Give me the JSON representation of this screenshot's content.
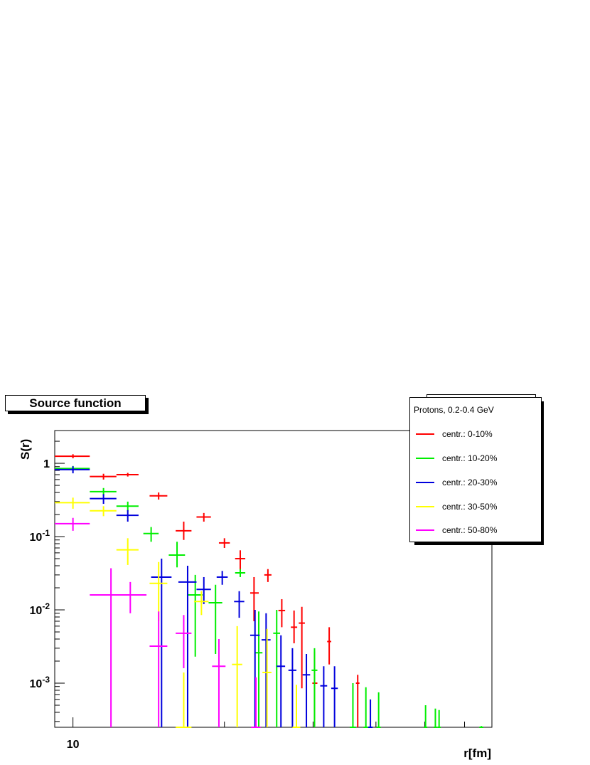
{
  "title": "Source function",
  "chart_data": {
    "type": "scatter",
    "style": "histogram-error-bars",
    "title": "Source function",
    "xlabel": "r[fm]",
    "ylabel": "S(r)",
    "xscale": "log",
    "yscale": "log",
    "xlim": [
      9.2,
      68
    ],
    "ylim": [
      0.00025,
      2.8
    ],
    "x_tick_labels": [
      {
        "value": 10,
        "text": "10"
      }
    ],
    "y_tick_labels": [
      {
        "value": 1,
        "text": "1",
        "mant": "1",
        "exp": ""
      },
      {
        "value": 0.1,
        "text": "10^-1",
        "mant": "10",
        "exp": "-1"
      },
      {
        "value": 0.01,
        "text": "10^-2",
        "mant": "10",
        "exp": "-2"
      },
      {
        "value": 0.001,
        "text": "10^-3",
        "mant": "10",
        "exp": "-3"
      }
    ],
    "legend": {
      "title": "Protons, 0.2-0.4 GeV",
      "position": "top-right",
      "entries": [
        {
          "label": "centr.: 0-10%",
          "color": "#ff0000"
        },
        {
          "label": "centr.: 10-20%",
          "color": "#00ee00"
        },
        {
          "label": "centr.: 20-30%",
          "color": "#0000dd"
        },
        {
          "label": "centr.: 30-50%",
          "color": "#ffff00"
        },
        {
          "label": "centr.: 50-80%",
          "color": "#ff00ff"
        }
      ]
    },
    "series": [
      {
        "name": "centr.: 0-10%",
        "color": "#ff0000",
        "points": [
          {
            "x": 10.0,
            "xlo": 9.2,
            "xhi": 10.8,
            "y": 1.25,
            "ylo": 1.17,
            "yhi": 1.33
          },
          {
            "x": 11.5,
            "xlo": 10.8,
            "xhi": 12.2,
            "y": 0.66,
            "ylo": 0.6,
            "yhi": 0.72
          },
          {
            "x": 12.85,
            "xlo": 12.2,
            "xhi": 13.5,
            "y": 0.7,
            "ylo": 0.66,
            "yhi": 0.74
          },
          {
            "x": 14.8,
            "xlo": 14.2,
            "xhi": 15.4,
            "y": 0.36,
            "ylo": 0.32,
            "yhi": 0.4
          },
          {
            "x": 16.6,
            "xlo": 16.0,
            "xhi": 17.2,
            "y": 0.12,
            "ylo": 0.09,
            "yhi": 0.16
          },
          {
            "x": 18.2,
            "xlo": 17.6,
            "xhi": 18.8,
            "y": 0.185,
            "ylo": 0.16,
            "yhi": 0.21
          },
          {
            "x": 20.0,
            "xlo": 19.5,
            "xhi": 20.5,
            "y": 0.082,
            "ylo": 0.07,
            "yhi": 0.095
          },
          {
            "x": 21.5,
            "xlo": 21.0,
            "xhi": 22.0,
            "y": 0.05,
            "ylo": 0.035,
            "yhi": 0.065
          },
          {
            "x": 22.9,
            "xlo": 22.5,
            "xhi": 23.4,
            "y": 0.017,
            "ylo": 0.007,
            "yhi": 0.028
          },
          {
            "x": 24.4,
            "xlo": 24.0,
            "xhi": 24.8,
            "y": 0.03,
            "ylo": 0.024,
            "yhi": 0.036
          },
          {
            "x": 26.0,
            "xlo": 25.6,
            "xhi": 26.4,
            "y": 0.0098,
            "ylo": 0.0058,
            "yhi": 0.014
          },
          {
            "x": 27.5,
            "xlo": 27.1,
            "xhi": 27.9,
            "y": 0.0058,
            "ylo": 0.0035,
            "yhi": 0.0098
          },
          {
            "x": 28.5,
            "xlo": 28.1,
            "xhi": 28.9,
            "y": 0.0066,
            "ylo": 0.00085,
            "yhi": 0.011
          },
          {
            "x": 30.2,
            "xlo": 29.9,
            "xhi": 30.6,
            "y": 0.001,
            "ylo": 0.00025,
            "yhi": 0.0027
          },
          {
            "x": 32.3,
            "xlo": 32.0,
            "xhi": 32.6,
            "y": 0.0037,
            "ylo": 0.0018,
            "yhi": 0.0058
          },
          {
            "x": 36.8,
            "xlo": 36.5,
            "xhi": 37.1,
            "y": 0.001,
            "ylo": 0.00025,
            "yhi": 0.0013
          }
        ]
      },
      {
        "name": "centr.: 10-20%",
        "color": "#00ee00",
        "points": [
          {
            "x": 10.0,
            "xlo": 9.2,
            "xhi": 10.8,
            "y": 0.85,
            "ylo": 0.78,
            "yhi": 0.92
          },
          {
            "x": 11.5,
            "xlo": 10.8,
            "xhi": 12.2,
            "y": 0.41,
            "ylo": 0.36,
            "yhi": 0.46
          },
          {
            "x": 12.85,
            "xlo": 12.2,
            "xhi": 13.5,
            "y": 0.26,
            "ylo": 0.22,
            "yhi": 0.3
          },
          {
            "x": 14.3,
            "xlo": 13.8,
            "xhi": 14.8,
            "y": 0.11,
            "ylo": 0.085,
            "yhi": 0.135
          },
          {
            "x": 16.1,
            "xlo": 15.5,
            "xhi": 16.7,
            "y": 0.056,
            "ylo": 0.038,
            "yhi": 0.085
          },
          {
            "x": 17.5,
            "xlo": 16.9,
            "xhi": 18.1,
            "y": 0.016,
            "ylo": 0.0023,
            "yhi": 0.03
          },
          {
            "x": 19.2,
            "xlo": 18.6,
            "xhi": 19.8,
            "y": 0.0125,
            "ylo": 0.0025,
            "yhi": 0.022
          },
          {
            "x": 21.5,
            "xlo": 21.0,
            "xhi": 22.0,
            "y": 0.032,
            "ylo": 0.028,
            "yhi": 0.036
          },
          {
            "x": 23.4,
            "xlo": 23.0,
            "xhi": 23.8,
            "y": 0.0026,
            "ylo": 0.00025,
            "yhi": 0.0095
          },
          {
            "x": 25.4,
            "xlo": 25.0,
            "xhi": 25.8,
            "y": 0.0048,
            "ylo": 0.00025,
            "yhi": 0.01
          },
          {
            "x": 30.2,
            "xlo": 29.8,
            "xhi": 30.6,
            "y": 0.0015,
            "ylo": 0.00025,
            "yhi": 0.003
          },
          {
            "x": 36.0,
            "xlo": 35.5,
            "xhi": 36.5,
            "y": 0.00025,
            "ylo": 0.00025,
            "yhi": 0.001
          },
          {
            "x": 38.2,
            "xlo": 37.8,
            "xhi": 38.6,
            "y": 0.00025,
            "ylo": 0.00025,
            "yhi": 0.00088
          },
          {
            "x": 40.5,
            "xlo": 40.1,
            "xhi": 40.9,
            "y": 0.00025,
            "ylo": 0.00025,
            "yhi": 0.00075
          },
          {
            "x": 50.2,
            "xlo": 49.8,
            "xhi": 50.6,
            "y": 0.00025,
            "ylo": 0.00025,
            "yhi": 0.0005
          },
          {
            "x": 52.5,
            "xlo": 52.1,
            "xhi": 52.9,
            "y": 0.00025,
            "ylo": 0.00025,
            "yhi": 0.00045
          },
          {
            "x": 53.4,
            "xlo": 53.0,
            "xhi": 53.8,
            "y": 0.00025,
            "ylo": 0.00025,
            "yhi": 0.00043
          },
          {
            "x": 64.8,
            "xlo": 64.2,
            "xhi": 65.4,
            "y": 0.00025,
            "ylo": 0.00025,
            "yhi": 0.00026
          }
        ]
      },
      {
        "name": "centr.: 20-30%",
        "color": "#0000dd",
        "points": [
          {
            "x": 10.0,
            "xlo": 9.2,
            "xhi": 10.8,
            "y": 0.82,
            "ylo": 0.73,
            "yhi": 0.91
          },
          {
            "x": 11.5,
            "xlo": 10.8,
            "xhi": 12.2,
            "y": 0.33,
            "ylo": 0.28,
            "yhi": 0.38
          },
          {
            "x": 12.85,
            "xlo": 12.2,
            "xhi": 13.5,
            "y": 0.195,
            "ylo": 0.16,
            "yhi": 0.23
          },
          {
            "x": 15.0,
            "xlo": 14.3,
            "xhi": 15.7,
            "y": 0.028,
            "ylo": 0.00025,
            "yhi": 0.05
          },
          {
            "x": 16.9,
            "xlo": 16.2,
            "xhi": 17.6,
            "y": 0.024,
            "ylo": 0.00025,
            "yhi": 0.04
          },
          {
            "x": 18.2,
            "xlo": 17.6,
            "xhi": 18.8,
            "y": 0.019,
            "ylo": 0.012,
            "yhi": 0.028
          },
          {
            "x": 19.8,
            "xlo": 19.3,
            "xhi": 20.3,
            "y": 0.028,
            "ylo": 0.022,
            "yhi": 0.034
          },
          {
            "x": 21.4,
            "xlo": 20.9,
            "xhi": 21.9,
            "y": 0.013,
            "ylo": 0.0078,
            "yhi": 0.018
          },
          {
            "x": 23.0,
            "xlo": 22.5,
            "xhi": 23.5,
            "y": 0.0045,
            "ylo": 0.00025,
            "yhi": 0.01
          },
          {
            "x": 24.2,
            "xlo": 23.7,
            "xhi": 24.7,
            "y": 0.0039,
            "ylo": 0.00025,
            "yhi": 0.009
          },
          {
            "x": 25.9,
            "xlo": 25.4,
            "xhi": 26.4,
            "y": 0.0017,
            "ylo": 0.00025,
            "yhi": 0.0045
          },
          {
            "x": 27.3,
            "xlo": 26.8,
            "xhi": 27.8,
            "y": 0.0015,
            "ylo": 0.00025,
            "yhi": 0.003
          },
          {
            "x": 29.1,
            "xlo": 28.6,
            "xhi": 29.6,
            "y": 0.0013,
            "ylo": 0.00025,
            "yhi": 0.0025
          },
          {
            "x": 31.5,
            "xlo": 31.0,
            "xhi": 32.0,
            "y": 0.00092,
            "ylo": 0.00025,
            "yhi": 0.0017
          },
          {
            "x": 33.1,
            "xlo": 32.6,
            "xhi": 33.6,
            "y": 0.00085,
            "ylo": 0.00025,
            "yhi": 0.0017
          },
          {
            "x": 39.0,
            "xlo": 38.6,
            "xhi": 39.4,
            "y": 0.00025,
            "ylo": 0.00025,
            "yhi": 0.0006
          }
        ]
      },
      {
        "name": "centr.: 30-50%",
        "color": "#ffff00",
        "points": [
          {
            "x": 10.0,
            "xlo": 9.2,
            "xhi": 10.8,
            "y": 0.29,
            "ylo": 0.24,
            "yhi": 0.34
          },
          {
            "x": 11.5,
            "xlo": 10.8,
            "xhi": 12.2,
            "y": 0.225,
            "ylo": 0.19,
            "yhi": 0.26
          },
          {
            "x": 12.85,
            "xlo": 12.2,
            "xhi": 13.5,
            "y": 0.066,
            "ylo": 0.041,
            "yhi": 0.095
          },
          {
            "x": 14.8,
            "xlo": 14.2,
            "xhi": 15.4,
            "y": 0.023,
            "ylo": 0.007,
            "yhi": 0.045
          },
          {
            "x": 16.6,
            "xlo": 16.0,
            "xhi": 17.2,
            "y": 0.00025,
            "ylo": 0.00025,
            "yhi": 0.0014
          },
          {
            "x": 18.0,
            "xlo": 17.4,
            "xhi": 18.6,
            "y": 0.013,
            "ylo": 0.0085,
            "yhi": 0.018
          },
          {
            "x": 21.2,
            "xlo": 20.7,
            "xhi": 21.7,
            "y": 0.0018,
            "ylo": 0.00025,
            "yhi": 0.006
          },
          {
            "x": 24.3,
            "xlo": 23.8,
            "xhi": 24.8,
            "y": 0.0014,
            "ylo": 0.00025,
            "yhi": 0.0055
          },
          {
            "x": 27.8,
            "xlo": 27.3,
            "xhi": 28.3,
            "y": 0.00025,
            "ylo": 0.00025,
            "yhi": 0.00095
          }
        ]
      },
      {
        "name": "centr.: 50-80%",
        "color": "#ff00ff",
        "points": [
          {
            "x": 10.0,
            "xlo": 9.2,
            "xhi": 10.8,
            "y": 0.15,
            "ylo": 0.12,
            "yhi": 0.18
          },
          {
            "x": 11.9,
            "xlo": 10.8,
            "xhi": 13.0,
            "y": 0.016,
            "ylo": 0.00025,
            "yhi": 0.037
          },
          {
            "x": 13.0,
            "xlo": 12.0,
            "xhi": 14.0,
            "y": 0.016,
            "ylo": 0.009,
            "yhi": 0.024
          },
          {
            "x": 14.8,
            "xlo": 14.2,
            "xhi": 15.4,
            "y": 0.0032,
            "ylo": 0.00025,
            "yhi": 0.0095
          },
          {
            "x": 16.6,
            "xlo": 16.0,
            "xhi": 17.2,
            "y": 0.0048,
            "ylo": 0.0016,
            "yhi": 0.0085
          },
          {
            "x": 19.5,
            "xlo": 18.9,
            "xhi": 20.1,
            "y": 0.0017,
            "ylo": 0.00025,
            "yhi": 0.004
          },
          {
            "x": 23.1,
            "xlo": 22.6,
            "xhi": 23.6,
            "y": 0.00025,
            "ylo": 0.00025,
            "yhi": 0.0012
          }
        ]
      }
    ]
  }
}
